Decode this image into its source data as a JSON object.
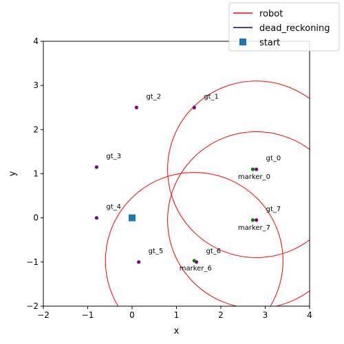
{
  "colors": {
    "robot": "#ff0000",
    "dead_reckoning": "#00008b",
    "start": "#1f77b4",
    "gt_point": "#800080",
    "marker_point": "#008000"
  },
  "chart_data": {
    "type": "scatter",
    "xlabel": "x",
    "ylabel": "y",
    "xlim": [
      -2,
      4
    ],
    "ylim": [
      -2,
      4
    ],
    "xticks": [
      -2,
      -1,
      0,
      1,
      2,
      3,
      4
    ],
    "yticks": [
      -2,
      -1,
      0,
      1,
      2,
      3,
      4
    ],
    "legend_position": "top-right",
    "legend": [
      {
        "label": "robot",
        "style": "line",
        "color": "#ff0000"
      },
      {
        "label": "dead_reckoning",
        "style": "line",
        "color": "#00008b"
      },
      {
        "label": "start",
        "style": "square",
        "color": "#1f77b4"
      }
    ],
    "start": {
      "x": 0,
      "y": 0
    },
    "ground_truth": [
      {
        "label": "gt_0",
        "x": 2.8,
        "y": 1.1
      },
      {
        "label": "gt_1",
        "x": 1.4,
        "y": 2.5
      },
      {
        "label": "gt_2",
        "x": 0.1,
        "y": 2.5
      },
      {
        "label": "gt_3",
        "x": -0.8,
        "y": 1.15
      },
      {
        "label": "gt_4",
        "x": -0.8,
        "y": 0.0
      },
      {
        "label": "gt_5",
        "x": 0.15,
        "y": -1.0
      },
      {
        "label": "gt_6",
        "x": 1.45,
        "y": -1.0
      },
      {
        "label": "gt_7",
        "x": 2.8,
        "y": -0.05
      }
    ],
    "markers": [
      {
        "label": "marker_0",
        "x": 2.72,
        "y": 1.1
      },
      {
        "label": "marker_6",
        "x": 1.4,
        "y": -0.97
      },
      {
        "label": "marker_7",
        "x": 2.72,
        "y": -0.05
      }
    ],
    "uncertainty_circles": [
      {
        "cx": 2.8,
        "cy": 1.1,
        "r": 2.0
      },
      {
        "cx": 2.8,
        "cy": -0.05,
        "r": 2.0
      },
      {
        "cx": 1.4,
        "cy": -0.97,
        "r": 2.0
      }
    ]
  }
}
